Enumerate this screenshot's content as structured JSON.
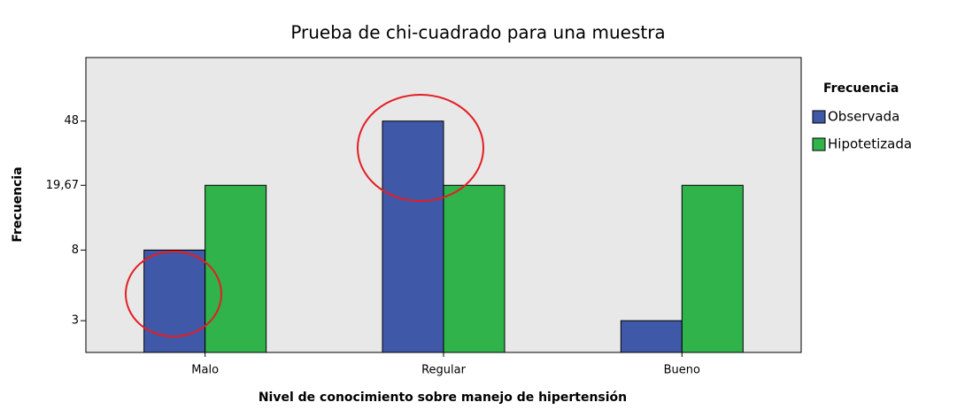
{
  "chart_data": {
    "type": "bar",
    "title": "Prueba de chi-cuadrado para una muestra",
    "x_label": "Nivel de conocimiento sobre manejo de hipertensión",
    "y_label": "Frecuencia",
    "legend_title": "Frecuencia",
    "legend_position": "right",
    "categories": [
      "Malo",
      "Regular",
      "Bueno"
    ],
    "series": [
      {
        "name": "Observada",
        "color": "#3f58a8",
        "values": [
          8,
          48,
          3
        ]
      },
      {
        "name": "Hipotetizada",
        "color": "#2fb34a",
        "values": [
          19.67,
          19.67,
          19.67
        ]
      }
    ],
    "yscale": "log",
    "ylim": [
      1.93,
      116
    ],
    "yticks": [
      3,
      8,
      {
        "value": 19.67,
        "label": "19,67"
      },
      48
    ],
    "grid": false
  }
}
